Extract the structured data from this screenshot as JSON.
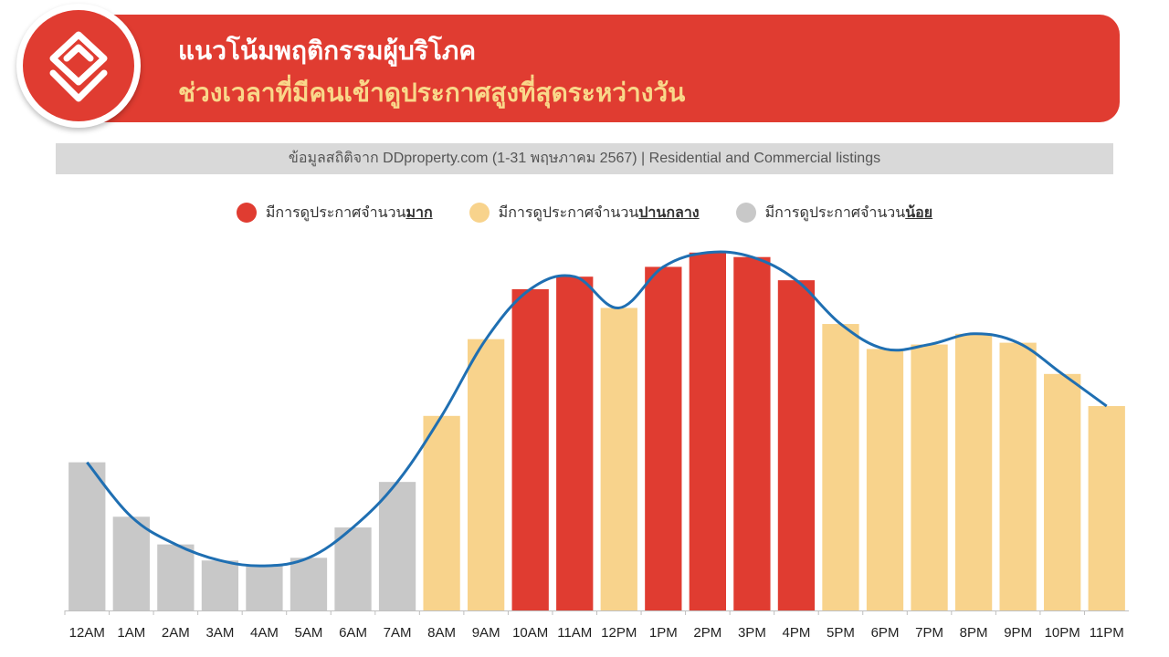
{
  "header": {
    "title_line1": "แนวโน้มพฤติกรรมผู้บริโภค",
    "title_line2": "ช่วงเวลาที่มีคนเข้าดูประกาศสูงที่สุดระหว่างวัน",
    "logo_icon": "ddproperty-logo-icon"
  },
  "source_bar": {
    "text": "ข้อมูลสถิติจาก DDproperty.com (1-31 พฤษภาคม 2567) | Residential and Commercial listings"
  },
  "legend": [
    {
      "prefix": "มีการดูประกาศจำนวน",
      "strong": "มาก",
      "color": "#e03c31"
    },
    {
      "prefix": "มีการดูประกาศจำนวน",
      "strong": "ปานกลาง",
      "color": "#f8d38c"
    },
    {
      "prefix": "มีการดูประกาศจำนวน",
      "strong": "น้อย",
      "color": "#c8c8c8"
    }
  ],
  "colors": {
    "high": "#e03c31",
    "medium": "#f8d38c",
    "low": "#c8c8c8",
    "line": "#1f6fb2",
    "banner": "#e03c31"
  },
  "chart_data": {
    "type": "bar",
    "categories": [
      "12AM",
      "1AM",
      "2AM",
      "3AM",
      "4AM",
      "5AM",
      "6AM",
      "7AM",
      "8AM",
      "9AM",
      "10AM",
      "11AM",
      "12PM",
      "1PM",
      "2PM",
      "3PM",
      "4PM",
      "5PM",
      "6PM",
      "7PM",
      "8PM",
      "9PM",
      "10PM",
      "11PM"
    ],
    "values": [
      166,
      105,
      74,
      56,
      50,
      59,
      93,
      144,
      218,
      304,
      360,
      374,
      339,
      385,
      401,
      396,
      370,
      321,
      293,
      298,
      310,
      300,
      265,
      229
    ],
    "levels": [
      "low",
      "low",
      "low",
      "low",
      "low",
      "low",
      "low",
      "low",
      "medium",
      "medium",
      "high",
      "high",
      "medium",
      "high",
      "high",
      "high",
      "high",
      "medium",
      "medium",
      "medium",
      "medium",
      "medium",
      "medium",
      "medium"
    ],
    "trend_line": [
      166,
      105,
      74,
      56,
      50,
      59,
      93,
      144,
      218,
      304,
      360,
      374,
      339,
      385,
      401,
      396,
      370,
      321,
      293,
      298,
      310,
      300,
      265,
      229
    ],
    "ylim": [
      0,
      410
    ],
    "grid": false,
    "xlabel": "",
    "ylabel": ""
  }
}
